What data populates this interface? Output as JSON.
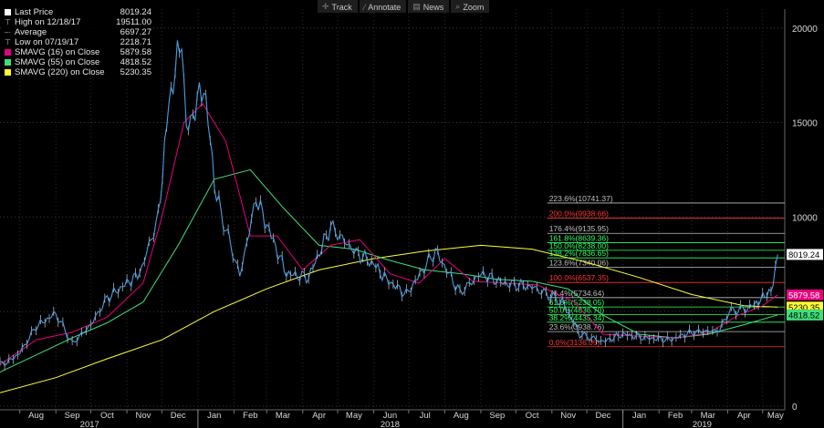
{
  "toolbar": [
    {
      "icon": "track-icon",
      "glyph": "✛",
      "label": "Track"
    },
    {
      "icon": "annotate-icon",
      "glyph": "∕",
      "label": "Annotate"
    },
    {
      "icon": "news-icon",
      "glyph": "▤",
      "label": "News"
    },
    {
      "icon": "zoom-icon",
      "glyph": "⌕",
      "label": "Zoom"
    }
  ],
  "legend": [
    {
      "mark": "square",
      "color": "#ffffff",
      "label": "Last Price",
      "value": "8019.24"
    },
    {
      "mark": "tick",
      "color": "#bbbbbb",
      "label": "High on 12/18/17",
      "value": "19511.00"
    },
    {
      "mark": "dash",
      "color": "#bbbbbb",
      "label": "Average",
      "value": "6697.27"
    },
    {
      "mark": "tick",
      "color": "#bbbbbb",
      "label": "Low on 07/19/17",
      "value": "2218.71"
    },
    {
      "mark": "square",
      "color": "#e6007e",
      "label": "SMAVG (16)  on Close",
      "value": "5879.58"
    },
    {
      "mark": "square",
      "color": "#3ee07a",
      "label": "SMAVG (55)  on Close",
      "value": "4818.52"
    },
    {
      "mark": "square",
      "color": "#ffff33",
      "label": "SMAVG (220)  on Close",
      "value": "5230.35"
    }
  ],
  "chart_data": {
    "type": "line",
    "x_labels": [
      "Aug",
      "Sep",
      "Oct",
      "Nov",
      "Dec",
      "Jan",
      "Feb",
      "Mar",
      "Apr",
      "May",
      "Jun",
      "Jul",
      "Aug",
      "Sep",
      "Oct",
      "Nov",
      "Dec",
      "Jan",
      "Feb",
      "Mar",
      "Apr",
      "May"
    ],
    "year_labels": [
      "2017",
      "2018",
      "2019"
    ],
    "y_ticks": [
      0,
      5000,
      10000,
      15000,
      20000
    ],
    "ylim": [
      -200,
      21000
    ],
    "xlim": [
      "2017-07-15",
      "2019-05-20"
    ],
    "series": [
      {
        "key": "price",
        "color": "#4a9ee0",
        "x": [
          "2017-07-15",
          "2017-07-19",
          "2017-08-01",
          "2017-08-15",
          "2017-09-01",
          "2017-09-15",
          "2017-10-01",
          "2017-10-15",
          "2017-11-01",
          "2017-11-12",
          "2017-11-28",
          "2017-12-07",
          "2017-12-18",
          "2017-12-22",
          "2018-01-06",
          "2018-01-17",
          "2018-02-06",
          "2018-02-20",
          "2018-03-05",
          "2018-03-18",
          "2018-04-06",
          "2018-04-25",
          "2018-05-15",
          "2018-06-01",
          "2018-06-12",
          "2018-06-29",
          "2018-07-24",
          "2018-08-14",
          "2018-09-01",
          "2018-09-20",
          "2018-10-15",
          "2018-11-10",
          "2018-11-25",
          "2018-12-15",
          "2019-01-01",
          "2019-01-20",
          "2019-02-10",
          "2019-03-01",
          "2019-03-25",
          "2019-04-02",
          "2019-04-20",
          "2019-05-01",
          "2019-05-10",
          "2019-05-14"
        ],
        "y": [
          2300,
          2218.71,
          2800,
          4200,
          4900,
          3300,
          4300,
          5700,
          6500,
          7000,
          10000,
          16000,
          19511,
          14500,
          17000,
          11000,
          6900,
          11000,
          9000,
          7000,
          6800,
          9500,
          8200,
          7500,
          6700,
          5900,
          8200,
          6000,
          7000,
          6500,
          6300,
          5500,
          3800,
          3400,
          3800,
          3600,
          3500,
          3900,
          4000,
          5000,
          5200,
          5700,
          6300,
          8019.24
        ]
      },
      {
        "key": "smavg16",
        "color": "#e6007e",
        "x": [
          "2017-07-15",
          "2017-08-15",
          "2017-09-15",
          "2017-10-15",
          "2017-11-15",
          "2017-12-01",
          "2017-12-20",
          "2018-01-05",
          "2018-01-25",
          "2018-02-15",
          "2018-03-10",
          "2018-04-01",
          "2018-04-25",
          "2018-05-20",
          "2018-06-15",
          "2018-07-10",
          "2018-08-01",
          "2018-08-25",
          "2018-09-20",
          "2018-10-20",
          "2018-11-20",
          "2018-12-15",
          "2019-01-15",
          "2019-02-15",
          "2019-03-15",
          "2019-04-10",
          "2019-05-01",
          "2019-05-14"
        ],
        "y": [
          2200,
          3500,
          3900,
          4700,
          6500,
          10000,
          15000,
          16000,
          14000,
          9000,
          9000,
          7200,
          8500,
          8800,
          7000,
          6500,
          7800,
          6600,
          6500,
          6400,
          5500,
          3800,
          3700,
          3600,
          3850,
          4800,
          5300,
          5879.58
        ]
      },
      {
        "key": "smavg55",
        "color": "#3ee07a",
        "x": [
          "2017-07-15",
          "2017-08-15",
          "2017-09-15",
          "2017-10-15",
          "2017-11-15",
          "2017-12-15",
          "2018-01-15",
          "2018-02-15",
          "2018-03-15",
          "2018-04-15",
          "2018-05-15",
          "2018-06-15",
          "2018-07-15",
          "2018-08-15",
          "2018-09-15",
          "2018-10-15",
          "2018-11-15",
          "2018-12-15",
          "2019-01-15",
          "2019-02-15",
          "2019-03-15",
          "2019-04-15",
          "2019-05-14"
        ],
        "y": [
          1800,
          2700,
          3600,
          4400,
          5500,
          8500,
          12000,
          12500,
          10500,
          8500,
          8300,
          7700,
          7200,
          7000,
          6700,
          6600,
          6200,
          4800,
          3800,
          3600,
          3800,
          4300,
          4818.52
        ]
      },
      {
        "key": "smavg220",
        "color": "#ffff33",
        "x": [
          "2017-07-15",
          "2017-09-01",
          "2017-10-15",
          "2017-12-01",
          "2018-01-15",
          "2018-03-01",
          "2018-04-15",
          "2018-06-01",
          "2018-07-15",
          "2018-09-01",
          "2018-10-15",
          "2018-12-01",
          "2019-01-15",
          "2019-03-01",
          "2019-04-15",
          "2019-05-14"
        ],
        "y": [
          700,
          1500,
          2500,
          3500,
          5000,
          6200,
          7200,
          7800,
          8200,
          8500,
          8300,
          7600,
          6800,
          5900,
          5300,
          5230.35
        ]
      }
    ],
    "fibonacci": [
      {
        "label": "223.6%(10741.37)",
        "value": 10741.37,
        "color": "#bfbfbf"
      },
      {
        "label": "200.0%(9938.66)",
        "value": 9938.66,
        "color": "#ff3333"
      },
      {
        "label": "176.4%(9135.95)",
        "value": 9135.95,
        "color": "#bfbfbf"
      },
      {
        "label": "161.8%(8639.36)",
        "value": 8639.36,
        "color": "#33ff66"
      },
      {
        "label": "150.0%(8238.00)",
        "value": 8238.0,
        "color": "#33ff66"
      },
      {
        "label": "138.2%(7836.65)",
        "value": 7836.65,
        "color": "#33ff66"
      },
      {
        "label": "123.6%(7340.06)",
        "value": 7340.06,
        "color": "#bfbfbf"
      },
      {
        "label": "100.0%(6537.35)",
        "value": 6537.35,
        "color": "#ff3333"
      },
      {
        "label": "76.4%(5734.64)",
        "value": 5734.64,
        "color": "#bfbfbf"
      },
      {
        "label": "61.8%(5238.05)",
        "value": 5238.05,
        "color": "#33ff66"
      },
      {
        "label": "50.0%(4836.70)",
        "value": 4836.7,
        "color": "#33ff66"
      },
      {
        "label": "38.2%(4435.34)",
        "value": 4435.34,
        "color": "#33ff66"
      },
      {
        "label": "23.6%(3938.76)",
        "value": 3938.76,
        "color": "#bfbfbf"
      },
      {
        "label": "0.0%(3136.05)",
        "value": 3136.05,
        "color": "#ff3333"
      }
    ],
    "value_tags": [
      {
        "label": "8019.24",
        "value": 8019.24,
        "bg": "#ffffff",
        "fg": "#000000"
      },
      {
        "label": "5879.58",
        "value": 5879.58,
        "bg": "#e6007e",
        "fg": "#ffffff"
      },
      {
        "label": "5230.35",
        "value": 5230.35,
        "bg": "#ffff33",
        "fg": "#000000"
      },
      {
        "label": "4818.52",
        "value": 4818.52,
        "bg": "#3ee07a",
        "fg": "#000000"
      }
    ]
  }
}
